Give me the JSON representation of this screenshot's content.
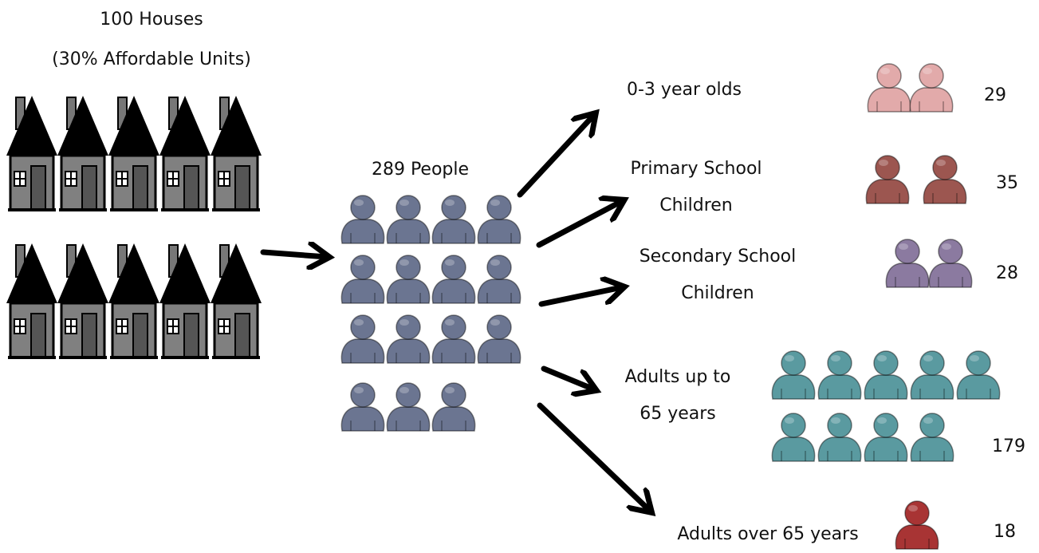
{
  "header": {
    "title": "100 Houses",
    "subtitle": "(30% Affordable Units)"
  },
  "total": {
    "label": "289 People"
  },
  "groups": [
    {
      "label": [
        "0-3 year olds"
      ],
      "count": 29
    },
    {
      "label": [
        "Primary School",
        "Children"
      ],
      "count": 35
    },
    {
      "label": [
        "Secondary School",
        "Children"
      ],
      "count": 28
    },
    {
      "label": [
        "Adults up to",
        "65 years"
      ],
      "count": 179
    },
    {
      "label": [
        "Adults over 65 years"
      ],
      "count": 18
    }
  ]
}
